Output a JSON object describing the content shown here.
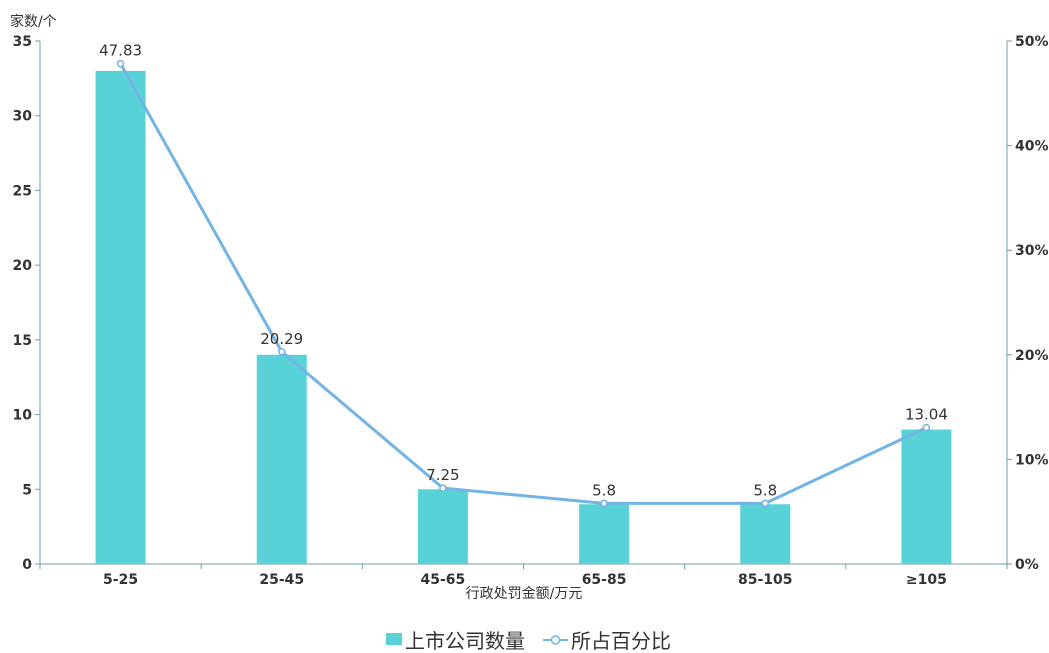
{
  "chart_data": {
    "type": "bar",
    "categories": [
      "5-25",
      "25-45",
      "45-65",
      "65-85",
      "85-105",
      "≥105"
    ],
    "series": [
      {
        "name": "上市公司数量",
        "type": "bar",
        "axis": "left",
        "values": [
          33,
          14,
          5,
          4,
          4,
          9
        ],
        "color": "#59d2d7"
      },
      {
        "name": "所占百分比",
        "type": "line",
        "axis": "right",
        "values": [
          47.83,
          20.29,
          7.25,
          5.8,
          5.8,
          13.04
        ],
        "labels": [
          "47.83",
          "20.29",
          "7.25",
          "5.8",
          "5.8",
          "13.04"
        ],
        "color": "#72b4e3"
      }
    ],
    "xlabel": "行政处罚金额/万元",
    "ylabel": "家数/个",
    "ylim": [
      0,
      35
    ],
    "y_ticks": [
      "0",
      "5",
      "10",
      "15",
      "20",
      "25",
      "30",
      "35"
    ],
    "y2lim": [
      0,
      50
    ],
    "y2_ticks": [
      "0%",
      "10%",
      "20%",
      "30%",
      "40%",
      "50%"
    ],
    "legend_position": "bottom",
    "grid": false
  }
}
